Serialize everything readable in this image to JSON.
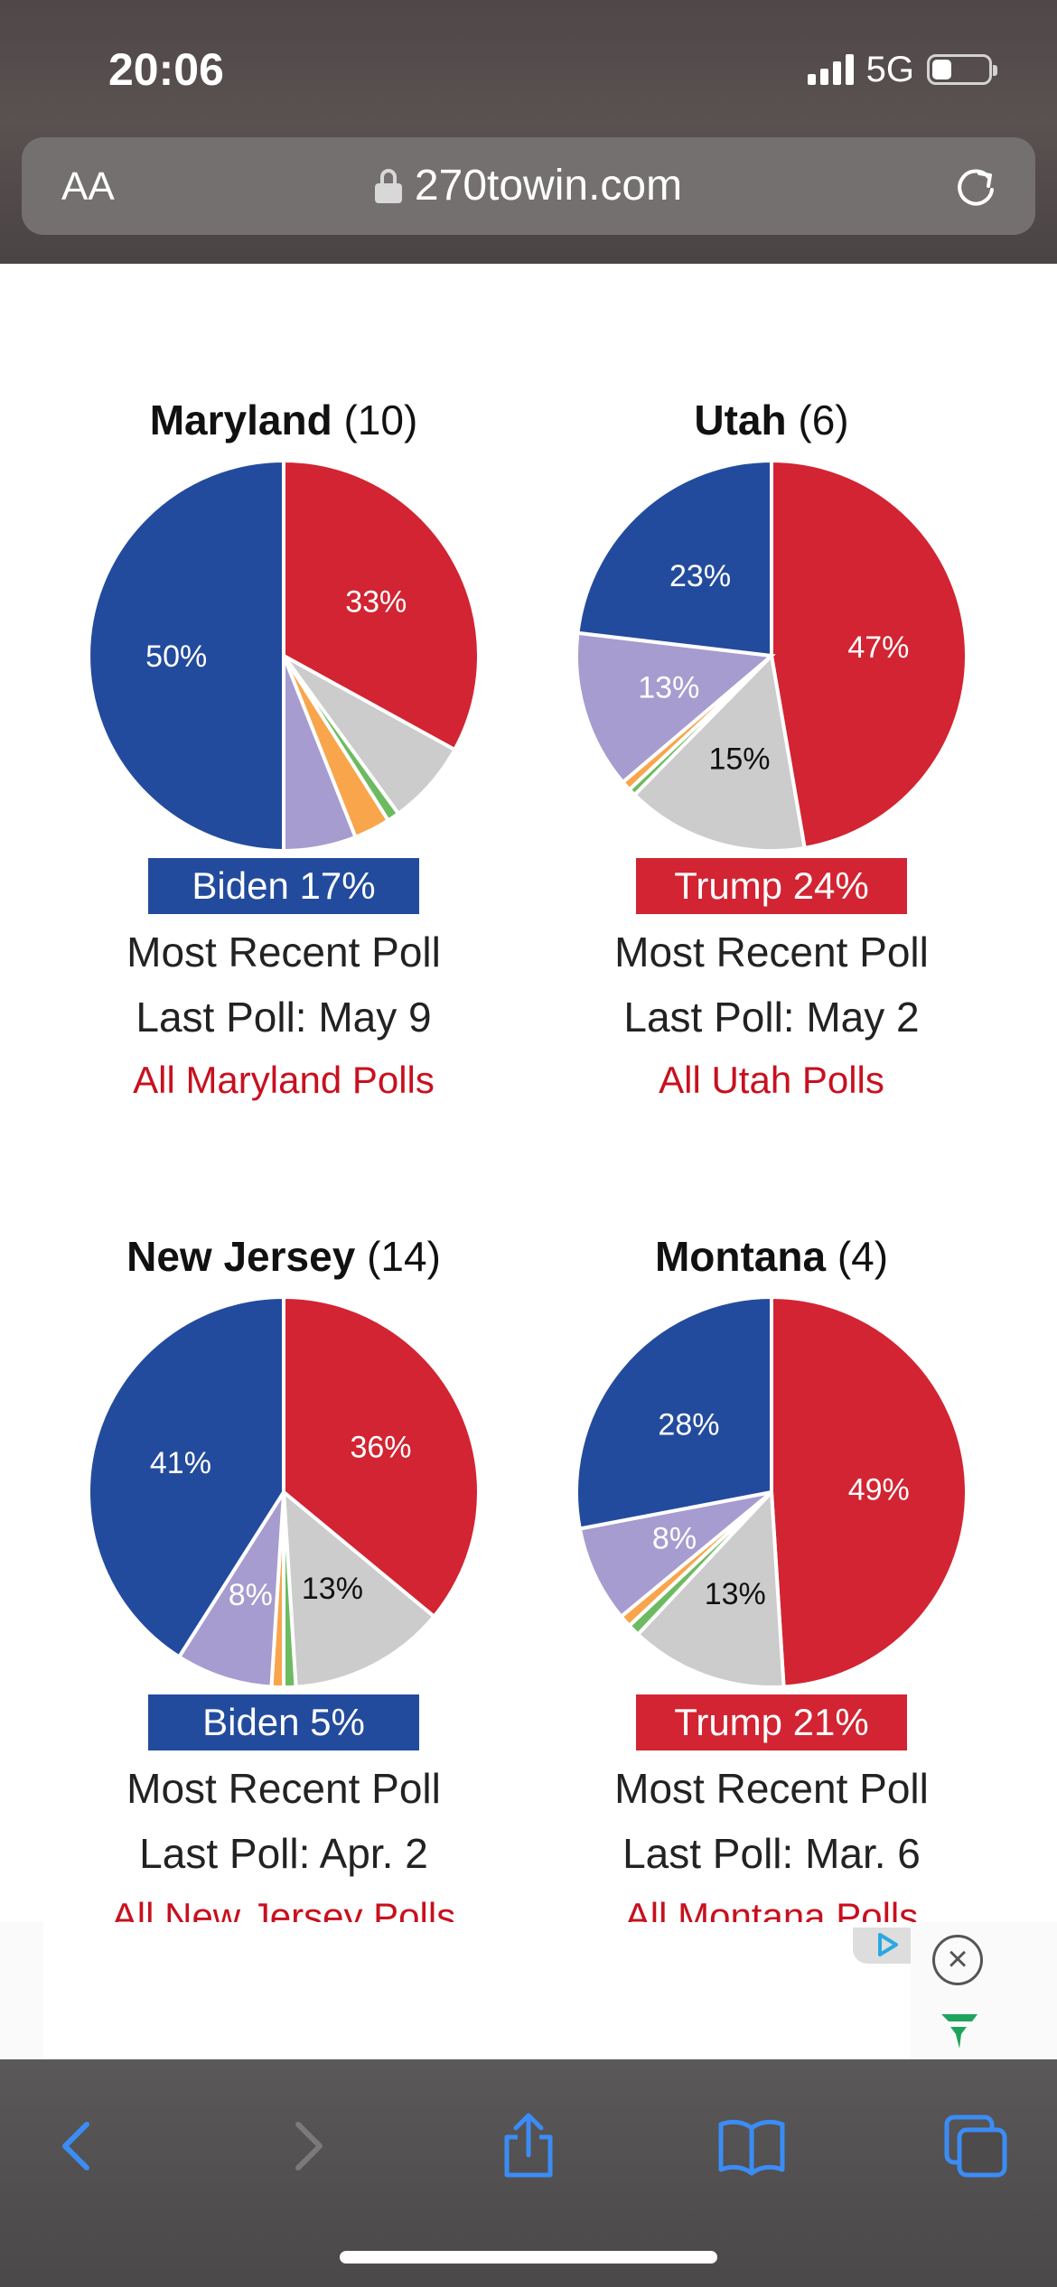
{
  "status_bar": {
    "time": "20:06",
    "network": "5G",
    "battery_level": 0.35
  },
  "browser": {
    "text_size_button": "AA",
    "url": "270towin.com"
  },
  "colors": {
    "democrat": "#234b9d",
    "republican": "#d22432",
    "undecided": "#cccccc",
    "other_purple": "#a79ccf",
    "other_orange": "#f9a54c",
    "other_green": "#6dbb60",
    "link": "#c8101e"
  },
  "states": [
    {
      "name": "Maryland",
      "votes": "(10)",
      "margin_label": "Biden 17%",
      "margin_party": "dem",
      "poll_type": "Most Recent Poll",
      "last_poll": "Last Poll: May 9",
      "link": "All Maryland Polls",
      "slices": [
        {
          "party": "rep",
          "value": 33,
          "label": "33%"
        },
        {
          "party": "und",
          "value": 7,
          "label": ""
        },
        {
          "party": "grn",
          "value": 1,
          "label": ""
        },
        {
          "party": "org",
          "value": 3,
          "label": ""
        },
        {
          "party": "pur",
          "value": 6,
          "label": ""
        },
        {
          "party": "dem",
          "value": 50,
          "label": "50%"
        }
      ]
    },
    {
      "name": "Utah",
      "votes": "(6)",
      "margin_label": "Trump 24%",
      "margin_party": "rep",
      "poll_type": "Most Recent Poll",
      "last_poll": "Last Poll: May 2",
      "link": "All Utah Polls",
      "slices": [
        {
          "party": "rep",
          "value": 47,
          "label": "47%"
        },
        {
          "party": "und",
          "value": 15,
          "label": "15%"
        },
        {
          "party": "grn",
          "value": 0.6,
          "label": ""
        },
        {
          "party": "org",
          "value": 0.8,
          "label": ""
        },
        {
          "party": "pur",
          "value": 13,
          "label": "13%"
        },
        {
          "party": "dem",
          "value": 23,
          "label": "23%"
        }
      ]
    },
    {
      "name": "New Jersey",
      "votes": "(14)",
      "margin_label": "Biden 5%",
      "margin_party": "dem",
      "poll_type": "Most Recent Poll",
      "last_poll": "Last Poll: Apr. 2",
      "link": "All New Jersey Polls",
      "slices": [
        {
          "party": "rep",
          "value": 36,
          "label": "36%"
        },
        {
          "party": "und",
          "value": 13,
          "label": "13%"
        },
        {
          "party": "grn",
          "value": 1,
          "label": ""
        },
        {
          "party": "org",
          "value": 1,
          "label": ""
        },
        {
          "party": "pur",
          "value": 8,
          "label": "8%"
        },
        {
          "party": "dem",
          "value": 41,
          "label": "41%"
        }
      ]
    },
    {
      "name": "Montana",
      "votes": "(4)",
      "margin_label": "Trump 21%",
      "margin_party": "rep",
      "poll_type": "Most Recent Poll",
      "last_poll": "Last Poll: Mar. 6",
      "link": "All Montana Polls",
      "slices": [
        {
          "party": "rep",
          "value": 49,
          "label": "49%"
        },
        {
          "party": "und",
          "value": 13,
          "label": "13%"
        },
        {
          "party": "grn",
          "value": 1,
          "label": ""
        },
        {
          "party": "org",
          "value": 1,
          "label": ""
        },
        {
          "party": "pur",
          "value": 8,
          "label": "8%"
        },
        {
          "party": "dem",
          "value": 28,
          "label": "28%"
        }
      ]
    }
  ],
  "icons": {
    "back": "chevron-left-icon",
    "forward": "chevron-right-icon",
    "share": "share-icon",
    "bookmarks": "book-icon",
    "tabs": "tabs-icon",
    "reload": "reload-icon",
    "lock": "lock-icon",
    "ad_close": "close-circle-icon",
    "ad_choices": "adchoices-icon",
    "ad_logo": "ad-brand-logo-icon"
  }
}
